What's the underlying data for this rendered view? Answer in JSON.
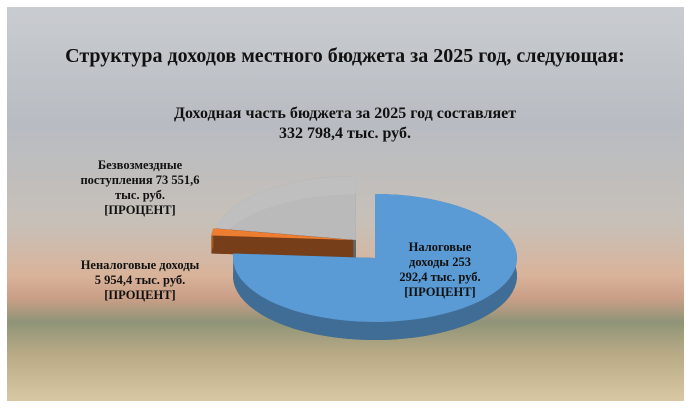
{
  "chart_data": {
    "type": "pie",
    "title": "Структура доходов местного бюджета за 2025 год, следующая:",
    "subtitle": "Доходная часть бюджета за 2025 год составляет",
    "total_label": "332 798,4 тыс. руб.",
    "categories": [
      "Налоговые доходы",
      "Неналоговые доходы",
      "Безвозмездные поступления"
    ],
    "values": [
      253292.4,
      5954.4,
      73551.6
    ],
    "value_labels": [
      "253 292,4",
      "5 954,4",
      "73 551,6"
    ],
    "unit": "тыс. руб.",
    "percent_label": "[ПРОЦЕНТ]",
    "colors": [
      "#5b9bd5",
      "#ed7d31",
      "#c8c8c8"
    ]
  }
}
